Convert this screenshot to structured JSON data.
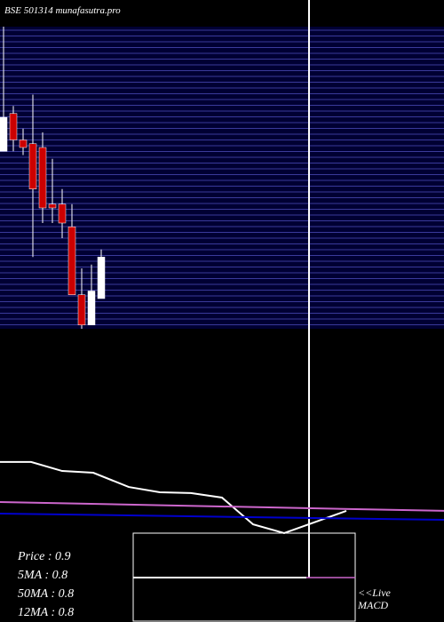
{
  "chart_data": [
    {
      "type": "candlestick",
      "title": "BSE 501314 munafasutra.pro",
      "ylim": [
        0.7,
        1.5
      ],
      "up_color": "#ffffff",
      "down_color": "#cc0000",
      "grid": true,
      "open": [
        1.17,
        1.27,
        1.2,
        1.19,
        1.18,
        1.03,
        1.03,
        0.97,
        0.79,
        0.71,
        0.78
      ],
      "close": [
        1.26,
        1.2,
        1.18,
        1.07,
        1.02,
        1.02,
        0.98,
        0.79,
        0.71,
        0.8,
        0.89
      ],
      "high": [
        1.5,
        1.29,
        1.23,
        1.32,
        1.22,
        1.15,
        1.07,
        1.03,
        0.86,
        0.87,
        0.91
      ],
      "low": [
        1.17,
        1.17,
        1.16,
        0.89,
        0.98,
        0.98,
        0.94,
        0.79,
        0.7,
        0.71,
        0.78
      ]
    },
    {
      "type": "line",
      "xlim": [
        0,
        500
      ],
      "ylim": [
        0,
        100
      ],
      "series": [
        {
          "color": "#ffffff",
          "x": [
            0,
            35,
            70,
            105,
            145,
            180,
            215,
            250,
            285,
            320,
            390
          ],
          "values": [
            36.4,
            36.4,
            31.8,
            30.9,
            23.6,
            20.9,
            20.5,
            18.2,
            4.5,
            0,
            11.4
          ]
        },
        {
          "color": "#cc66cc",
          "x": [
            0,
            500
          ],
          "values": [
            15.9,
            11.4
          ]
        },
        {
          "color": "#0000cc",
          "x": [
            0,
            500
          ],
          "values": [
            10,
            6.8
          ]
        }
      ]
    }
  ],
  "legend": [
    "Price   : 0.9",
    "5MA : 0.8",
    "50MA : 0.8",
    "12MA : 0.8"
  ],
  "live": "<<Live",
  "macd": "MACD"
}
